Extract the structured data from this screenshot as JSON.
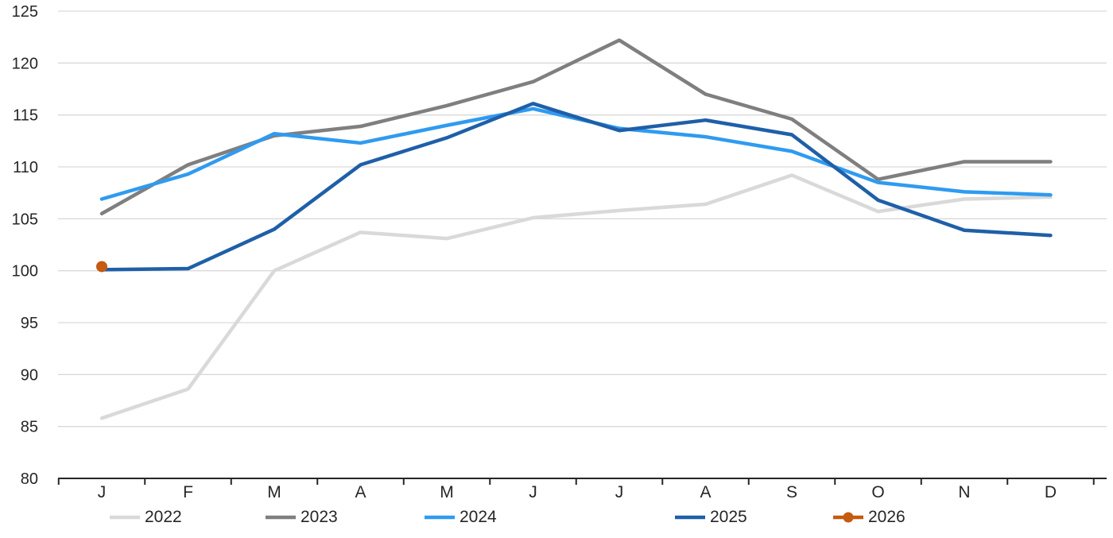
{
  "chart_data": {
    "type": "line",
    "title": "",
    "x_tick_labels": [
      "J",
      "F",
      "M",
      "A",
      "M",
      "J",
      "J",
      "A",
      "S",
      "O",
      "N",
      "D"
    ],
    "y_axis": {
      "min": 80,
      "max": 125,
      "step": 5,
      "tick_labels": [
        "80",
        "85",
        "90",
        "95",
        "100",
        "105",
        "110",
        "115",
        "120",
        "125"
      ]
    },
    "grid": true,
    "series": [
      {
        "name": "2022",
        "color": "#d9d9d9",
        "marker": "none",
        "values": [
          85.8,
          88.6,
          100.0,
          103.7,
          103.1,
          105.1,
          105.8,
          106.4,
          109.2,
          105.7,
          106.9,
          107.1
        ]
      },
      {
        "name": "2023",
        "color": "#7f7f7f",
        "marker": "none",
        "values": [
          105.5,
          110.2,
          113.0,
          113.9,
          115.9,
          118.2,
          122.2,
          117.0,
          114.6,
          108.8,
          110.5,
          110.5
        ]
      },
      {
        "name": "2024",
        "color": "#2f9bf0",
        "marker": "none",
        "values": [
          106.9,
          109.3,
          113.2,
          112.3,
          114.0,
          115.6,
          113.7,
          112.9,
          111.5,
          108.5,
          107.6,
          107.3
        ]
      },
      {
        "name": "2025",
        "color": "#1f5fa8",
        "marker": "none",
        "values": [
          100.1,
          100.2,
          104.0,
          110.2,
          112.8,
          116.1,
          113.5,
          114.5,
          113.1,
          106.8,
          103.9,
          103.4
        ]
      },
      {
        "name": "2026",
        "color": "#c55a11",
        "marker": "circle",
        "values": [
          100.4
        ]
      }
    ],
    "legend": {
      "position": "bottom",
      "entries": [
        "2022",
        "2023",
        "2024",
        "2025",
        "2026"
      ]
    }
  },
  "colors": {
    "background": "#ffffff",
    "gridline": "#d9d9d9",
    "axis": "#262626",
    "tick_text": "#262626"
  }
}
